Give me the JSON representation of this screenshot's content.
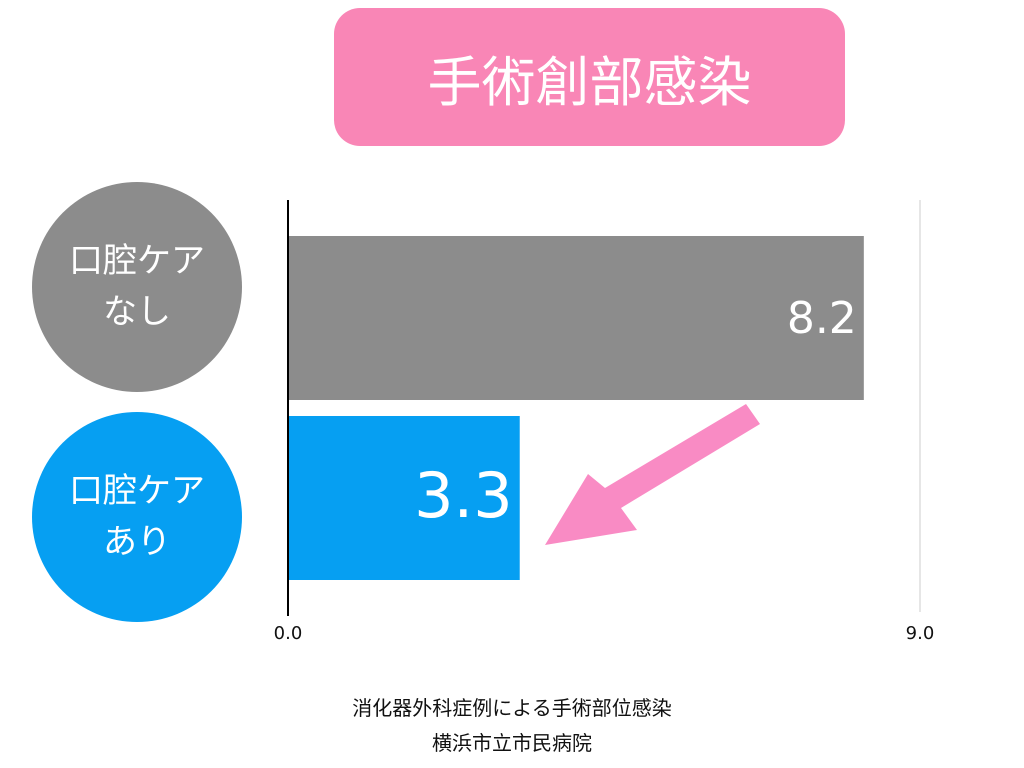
{
  "chart_data": {
    "type": "bar",
    "orientation": "horizontal",
    "title": "手術創部感染",
    "categories": [
      "口腔ケアなし",
      "口腔ケアあり"
    ],
    "values": [
      8.2,
      3.3
    ],
    "colors": [
      "#8c8c8c",
      "#069ff2"
    ],
    "xlim": [
      0,
      9
    ],
    "xticks": [
      {
        "value": 0,
        "label": "0.0"
      },
      {
        "value": 9,
        "label": "9.0"
      }
    ],
    "grid": true,
    "caption": [
      "消化器外科症例による手術部位感染",
      "横浜市立市民病院"
    ]
  }
}
